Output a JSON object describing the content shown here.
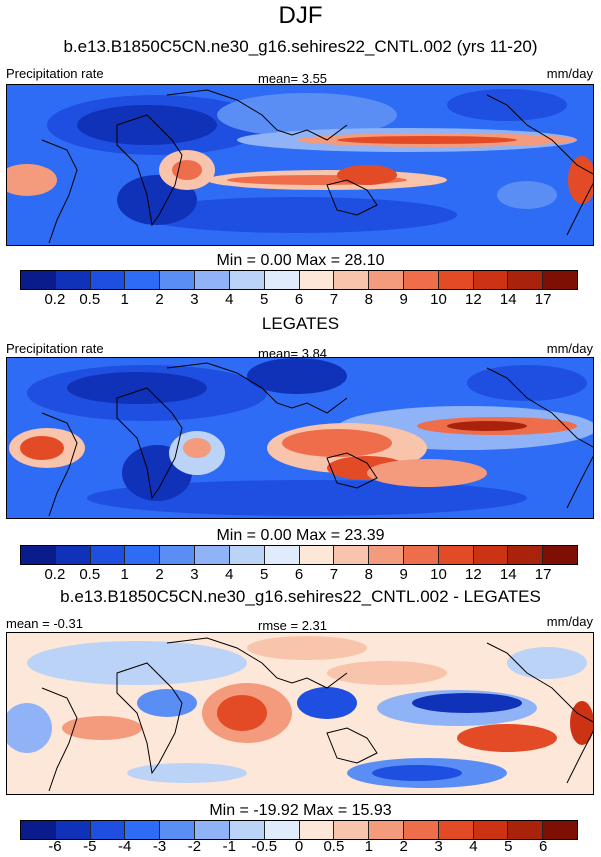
{
  "figure": {
    "title": "DJF"
  },
  "panels": [
    {
      "heading": "b.e13.B1850C5CN.ne30_g16.sehires22_CNTL.002 (yrs 11-20)",
      "left_label": "Precipitation rate",
      "center_label": "mean=  3.55",
      "right_label": "mm/day",
      "min_max": "Min =   0.00 Max =  28.10",
      "colorbar": {
        "colors": [
          "#0a1c8c",
          "#1032b8",
          "#1e4fe0",
          "#2f6cf5",
          "#5a8ef5",
          "#8fb3f6",
          "#bcd3f8",
          "#e0ebfb",
          "#fde7d9",
          "#f8c4ab",
          "#f39b7c",
          "#ee6e4c",
          "#e34a26",
          "#cc3214",
          "#a8220c",
          "#7d0f05"
        ],
        "ticks": [
          "0.2",
          "0.5",
          "1",
          "2",
          "3",
          "4",
          "5",
          "6",
          "7",
          "8",
          "9",
          "10",
          "12",
          "14",
          "17"
        ]
      }
    },
    {
      "heading": "LEGATES",
      "left_label": "Precipitation rate",
      "center_label": "mean=  3.84",
      "right_label": "mm/day",
      "min_max": "Min =   0.00 Max =  23.39",
      "colorbar": {
        "colors": [
          "#0a1c8c",
          "#1032b8",
          "#1e4fe0",
          "#2f6cf5",
          "#5a8ef5",
          "#8fb3f6",
          "#bcd3f8",
          "#e0ebfb",
          "#fde7d9",
          "#f8c4ab",
          "#f39b7c",
          "#ee6e4c",
          "#e34a26",
          "#cc3214",
          "#a8220c",
          "#7d0f05"
        ],
        "ticks": [
          "0.2",
          "0.5",
          "1",
          "2",
          "3",
          "4",
          "5",
          "6",
          "7",
          "8",
          "9",
          "10",
          "12",
          "14",
          "17"
        ]
      }
    },
    {
      "heading": "b.e13.B1850C5CN.ne30_g16.sehires22_CNTL.002 - LEGATES",
      "left_label": "mean =  -0.31",
      "center_label": "rmse =  2.31",
      "right_label": "mm/day",
      "min_max": "Min = -19.92 Max =  15.93",
      "colorbar": {
        "colors": [
          "#0a1c8c",
          "#1032b8",
          "#1e4fe0",
          "#2f6cf5",
          "#5a8ef5",
          "#8fb3f6",
          "#bcd3f8",
          "#e0ebfb",
          "#fde7d9",
          "#f8c4ab",
          "#f39b7c",
          "#ee6e4c",
          "#e34a26",
          "#cc3214",
          "#a8220c",
          "#7d0f05"
        ],
        "ticks": [
          "-6",
          "-5",
          "-4",
          "-3",
          "-2",
          "-1",
          "-0.5",
          "0",
          "0.5",
          "1",
          "2",
          "3",
          "4",
          "5",
          "6"
        ]
      }
    }
  ]
}
